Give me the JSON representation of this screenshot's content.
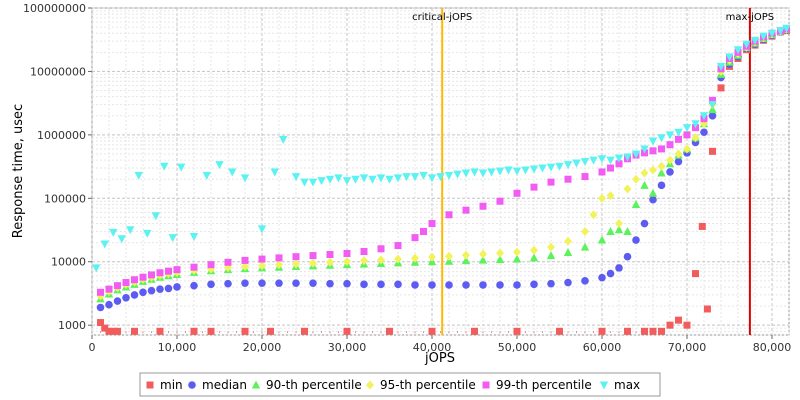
{
  "chart_data": {
    "type": "scatter",
    "title": "",
    "xlabel": "jOPS",
    "ylabel": "Response time, usec",
    "xlim": [
      0,
      82000
    ],
    "ylim": [
      700,
      100000000
    ],
    "yscale": "log",
    "grid": true,
    "legend_position": "bottom",
    "x_ticks": [
      0,
      10000,
      20000,
      30000,
      40000,
      50000,
      60000,
      70000,
      80000
    ],
    "x_tick_labels": [
      "0",
      "10,000",
      "20,000",
      "30,000",
      "40,000",
      "50,000",
      "60,000",
      "70,000",
      "80,000"
    ],
    "y_ticks": [
      1000,
      10000,
      100000,
      1000000,
      10000000,
      100000000
    ],
    "y_tick_labels": [
      "1000",
      "10000",
      "100000",
      "1000000",
      "10000000",
      "100000000"
    ],
    "markers": [
      {
        "label": "critical-jOPS",
        "x": 41200,
        "color": "#ffb800"
      },
      {
        "label": "max-jOPS",
        "x": 77400,
        "color": "#e00000"
      }
    ],
    "series": [
      {
        "name": "min",
        "color": "#f25c5c",
        "marker": "square",
        "x": [
          1000,
          1500,
          2000,
          2500,
          3000,
          5000,
          8000,
          12000,
          14000,
          18000,
          21000,
          25000,
          30000,
          35000,
          40000,
          45000,
          50000,
          55000,
          60000,
          63000,
          65000,
          66000,
          67000,
          68000,
          69000,
          70000,
          71000,
          71800,
          72400,
          73000,
          74000,
          75000,
          76000,
          77000,
          78000,
          79000,
          80000,
          81000,
          81700
        ],
        "y": [
          1100,
          900,
          800,
          800,
          800,
          800,
          800,
          800,
          800,
          800,
          800,
          800,
          800,
          800,
          800,
          800,
          800,
          800,
          800,
          800,
          800,
          800,
          800,
          1000,
          1200,
          1000,
          6500,
          36000,
          1800,
          550000,
          5500000,
          12000000,
          16000000,
          22000000,
          26000000,
          31000000,
          36000000,
          42000000,
          44000000
        ]
      },
      {
        "name": "median",
        "color": "#5c5cf2",
        "marker": "circle",
        "x": [
          1000,
          2000,
          3000,
          4000,
          5000,
          6000,
          7000,
          8000,
          9000,
          10000,
          12000,
          14000,
          16000,
          18000,
          20000,
          22000,
          24000,
          26000,
          28000,
          30000,
          32000,
          34000,
          36000,
          38000,
          40000,
          42000,
          44000,
          46000,
          48000,
          50000,
          52000,
          54000,
          56000,
          58000,
          60000,
          61000,
          62000,
          63000,
          64000,
          65000,
          66000,
          67000,
          68000,
          69000,
          70000,
          71000,
          72000,
          73000,
          74000,
          75000,
          76000,
          77000,
          78000,
          79000,
          80000,
          81000,
          81700
        ],
        "y": [
          1900,
          2100,
          2400,
          2700,
          3000,
          3300,
          3500,
          3700,
          3800,
          4000,
          4200,
          4400,
          4500,
          4600,
          4600,
          4600,
          4600,
          4600,
          4500,
          4500,
          4400,
          4400,
          4400,
          4300,
          4300,
          4300,
          4300,
          4300,
          4300,
          4300,
          4400,
          4500,
          4700,
          5000,
          5600,
          6500,
          8000,
          12000,
          22000,
          40000,
          95000,
          160000,
          260000,
          380000,
          520000,
          760000,
          1100000,
          2000000,
          8000000,
          13000000,
          17000000,
          23000000,
          27000000,
          32000000,
          37000000,
          42000000,
          45000000
        ]
      },
      {
        "name": "90-th percentile",
        "color": "#5cf25c",
        "marker": "triangle-up",
        "x": [
          1000,
          2000,
          3000,
          4000,
          5000,
          6000,
          7000,
          8000,
          9000,
          10000,
          12000,
          14000,
          16000,
          18000,
          20000,
          22000,
          24000,
          26000,
          28000,
          30000,
          32000,
          34000,
          36000,
          38000,
          40000,
          42000,
          44000,
          46000,
          48000,
          50000,
          52000,
          54000,
          56000,
          58000,
          60000,
          61000,
          62000,
          63000,
          64000,
          65000,
          66000,
          67000,
          68000,
          69000,
          70000,
          71000,
          72000,
          73000,
          74000,
          75000,
          76000,
          77000,
          78000,
          79000,
          80000,
          81000,
          81700
        ],
        "y": [
          2600,
          3100,
          3600,
          4000,
          4400,
          4900,
          5300,
          5700,
          6000,
          6300,
          6800,
          7200,
          7500,
          7800,
          8000,
          8200,
          8400,
          8600,
          8800,
          9000,
          9200,
          9400,
          9600,
          9800,
          10000,
          10200,
          10400,
          10600,
          10800,
          11000,
          11500,
          12500,
          14000,
          17000,
          22000,
          30000,
          32000,
          30000,
          80000,
          160000,
          120000,
          250000,
          350000,
          480000,
          600000,
          900000,
          1500000,
          2500000,
          9000000,
          14000000,
          18000000,
          24000000,
          28000000,
          33000000,
          38000000,
          43000000,
          46000000
        ]
      },
      {
        "name": "95-th percentile",
        "color": "#f2f25c",
        "marker": "diamond",
        "x": [
          1000,
          2000,
          3000,
          4000,
          5000,
          6000,
          7000,
          8000,
          9000,
          10000,
          12000,
          14000,
          16000,
          18000,
          20000,
          22000,
          24000,
          26000,
          28000,
          30000,
          32000,
          34000,
          36000,
          38000,
          40000,
          42000,
          44000,
          46000,
          48000,
          50000,
          52000,
          54000,
          56000,
          58000,
          59000,
          60000,
          61000,
          62000,
          63000,
          64000,
          65000,
          66000,
          67000,
          68000,
          69000,
          70000,
          71000,
          72000,
          73000,
          74000,
          75000,
          76000,
          77000,
          78000,
          79000,
          80000,
          81000,
          81700
        ],
        "y": [
          2900,
          3400,
          3900,
          4400,
          4800,
          5300,
          5700,
          6100,
          6500,
          6800,
          7300,
          7700,
          8100,
          8400,
          8700,
          9000,
          9200,
          9500,
          9800,
          10100,
          10400,
          10700,
          11000,
          11400,
          11800,
          12200,
          12700,
          13200,
          13700,
          14200,
          15200,
          17000,
          21000,
          30000,
          55000,
          100000,
          110000,
          40000,
          140000,
          200000,
          250000,
          280000,
          320000,
          400000,
          500000,
          600000,
          900000,
          1500000,
          3000000,
          10000000,
          15000000,
          19000000,
          24000000,
          29000000,
          34000000,
          39000000,
          43000000,
          46000000
        ]
      },
      {
        "name": "99-th percentile",
        "color": "#f25cf2",
        "marker": "square",
        "x": [
          1000,
          2000,
          3000,
          4000,
          5000,
          6000,
          7000,
          8000,
          9000,
          10000,
          12000,
          14000,
          16000,
          18000,
          20000,
          22000,
          24000,
          26000,
          28000,
          30000,
          32000,
          34000,
          36000,
          38000,
          39000,
          40000,
          42000,
          44000,
          46000,
          48000,
          50000,
          52000,
          54000,
          56000,
          58000,
          60000,
          61000,
          62000,
          63000,
          64000,
          65000,
          66000,
          67000,
          68000,
          69000,
          70000,
          71000,
          72000,
          73000,
          74000,
          75000,
          76000,
          77000,
          78000,
          79000,
          80000,
          81000,
          81700
        ],
        "y": [
          3300,
          3700,
          4200,
          4700,
          5200,
          5700,
          6200,
          6700,
          7100,
          7500,
          8200,
          9000,
          9800,
          10500,
          11000,
          11500,
          12000,
          12500,
          13000,
          13500,
          14500,
          16000,
          18000,
          24000,
          30000,
          40000,
          55000,
          65000,
          75000,
          90000,
          120000,
          150000,
          180000,
          200000,
          220000,
          260000,
          300000,
          350000,
          420000,
          480000,
          520000,
          560000,
          600000,
          700000,
          850000,
          1000000,
          1300000,
          1800000,
          3500000,
          11000000,
          16000000,
          20000000,
          25000000,
          30000000,
          35000000,
          40000000,
          44000000,
          47000000
        ]
      },
      {
        "name": "max",
        "color": "#5cf2f2",
        "marker": "triangle-down",
        "x": [
          500,
          1500,
          2500,
          3500,
          4500,
          5500,
          6500,
          7500,
          8500,
          9500,
          10500,
          12000,
          13500,
          15000,
          16500,
          18000,
          20000,
          21500,
          22500,
          24000,
          25000,
          26000,
          27000,
          28000,
          29000,
          30000,
          31000,
          32000,
          33000,
          34000,
          35000,
          36000,
          37000,
          38000,
          39000,
          40000,
          41000,
          42000,
          43000,
          44000,
          45000,
          46000,
          47000,
          48000,
          49000,
          50000,
          51000,
          52000,
          53000,
          54000,
          55000,
          56000,
          57000,
          58000,
          59000,
          60000,
          61000,
          62000,
          63000,
          64000,
          65000,
          66000,
          67000,
          68000,
          69000,
          70000,
          71000,
          72000,
          73000,
          74000,
          75000,
          76000,
          77000,
          78000,
          79000,
          80000,
          81000,
          81700
        ],
        "y": [
          8000,
          19000,
          29000,
          23000,
          32000,
          230000,
          28000,
          53000,
          320000,
          24000,
          310000,
          25000,
          230000,
          340000,
          260000,
          210000,
          33000,
          260000,
          850000,
          220000,
          180000,
          180000,
          190000,
          200000,
          210000,
          190000,
          200000,
          210000,
          200000,
          210000,
          200000,
          210000,
          220000,
          220000,
          230000,
          210000,
          220000,
          230000,
          240000,
          250000,
          260000,
          250000,
          260000,
          270000,
          280000,
          270000,
          280000,
          290000,
          300000,
          310000,
          320000,
          340000,
          360000,
          380000,
          400000,
          420000,
          400000,
          430000,
          450000,
          500000,
          600000,
          800000,
          900000,
          1000000,
          1100000,
          1300000,
          1500000,
          2000000,
          3000000,
          12000000,
          17000000,
          22000000,
          27000000,
          31000000,
          36000000,
          40000000,
          44000000,
          48000000
        ]
      }
    ]
  }
}
